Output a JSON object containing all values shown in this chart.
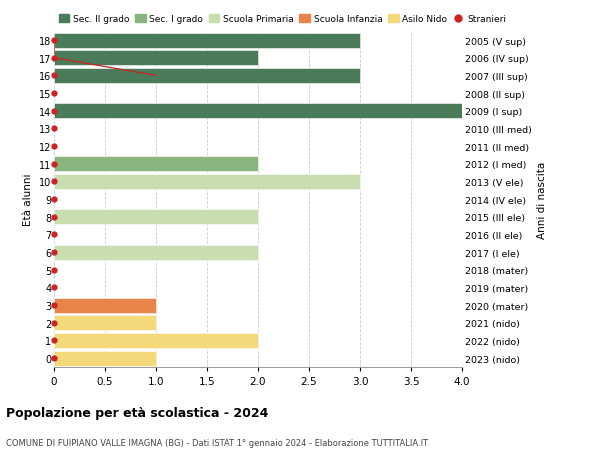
{
  "ages": [
    18,
    17,
    16,
    15,
    14,
    13,
    12,
    11,
    10,
    9,
    8,
    7,
    6,
    5,
    4,
    3,
    2,
    1,
    0
  ],
  "right_labels": [
    "2005 (V sup)",
    "2006 (IV sup)",
    "2007 (III sup)",
    "2008 (II sup)",
    "2009 (I sup)",
    "2010 (III med)",
    "2011 (II med)",
    "2012 (I med)",
    "2013 (V ele)",
    "2014 (IV ele)",
    "2015 (III ele)",
    "2016 (II ele)",
    "2017 (I ele)",
    "2018 (mater)",
    "2019 (mater)",
    "2020 (mater)",
    "2021 (nido)",
    "2022 (nido)",
    "2023 (nido)"
  ],
  "bars": [
    {
      "age": 18,
      "value": 3,
      "color": "#4a7c59"
    },
    {
      "age": 17,
      "value": 2,
      "color": "#4a7c59"
    },
    {
      "age": 16,
      "value": 3,
      "color": "#4a7c59"
    },
    {
      "age": 15,
      "value": 0,
      "color": "#4a7c59"
    },
    {
      "age": 14,
      "value": 4,
      "color": "#4a7c59"
    },
    {
      "age": 13,
      "value": 0,
      "color": "#4a7c59"
    },
    {
      "age": 12,
      "value": 0,
      "color": "#4a7c59"
    },
    {
      "age": 11,
      "value": 2,
      "color": "#88b47e"
    },
    {
      "age": 10,
      "value": 3,
      "color": "#c8ddb0"
    },
    {
      "age": 9,
      "value": 0,
      "color": "#c8ddb0"
    },
    {
      "age": 8,
      "value": 2,
      "color": "#c8ddb0"
    },
    {
      "age": 7,
      "value": 0,
      "color": "#c8ddb0"
    },
    {
      "age": 6,
      "value": 2,
      "color": "#c8ddb0"
    },
    {
      "age": 5,
      "value": 0,
      "color": "#e8844a"
    },
    {
      "age": 4,
      "value": 0,
      "color": "#e8844a"
    },
    {
      "age": 3,
      "value": 1,
      "color": "#e8844a"
    },
    {
      "age": 2,
      "value": 1,
      "color": "#f5d87a"
    },
    {
      "age": 1,
      "value": 2,
      "color": "#f5d87a"
    },
    {
      "age": 0,
      "value": 1,
      "color": "#f5d87a"
    }
  ],
  "stranieri_color": "#cc2222",
  "stranieri_dots_ages": [
    18,
    17,
    16,
    15,
    14,
    13,
    12,
    11,
    10,
    9,
    8,
    7,
    6,
    5,
    4,
    3,
    2,
    1,
    0
  ],
  "stranieri_line_ages": [
    18,
    17,
    16
  ],
  "stranieri_line_values": [
    0,
    0,
    1
  ],
  "legend_items": [
    {
      "label": "Sec. II grado",
      "color": "#4a7c59",
      "type": "patch"
    },
    {
      "label": "Sec. I grado",
      "color": "#88b47e",
      "type": "patch"
    },
    {
      "label": "Scuola Primaria",
      "color": "#c8ddb0",
      "type": "patch"
    },
    {
      "label": "Scuola Infanzia",
      "color": "#e8844a",
      "type": "patch"
    },
    {
      "label": "Asilo Nido",
      "color": "#f5d87a",
      "type": "patch"
    },
    {
      "label": "Stranieri",
      "color": "#cc2222",
      "type": "dot"
    }
  ],
  "xlim": [
    0,
    4.0
  ],
  "ylim": [
    -0.5,
    18.5
  ],
  "xtick_labels": [
    "0",
    "0.5",
    "1.0",
    "1.5",
    "2.0",
    "2.5",
    "3.0",
    "3.5",
    "4.0"
  ],
  "xtick_values": [
    0,
    0.5,
    1.0,
    1.5,
    2.0,
    2.5,
    3.0,
    3.5,
    4.0
  ],
  "ylabel": "Età alunni",
  "right_ylabel": "Anni di nascita",
  "title": "Popolazione per età scolastica - 2024",
  "subtitle": "COMUNE DI FUIPIANO VALLE IMAGNA (BG) - Dati ISTAT 1° gennaio 2024 - Elaborazione TUTTITALIA.IT",
  "bg_color": "#ffffff",
  "bar_height": 0.85,
  "grid_color": "#cccccc"
}
